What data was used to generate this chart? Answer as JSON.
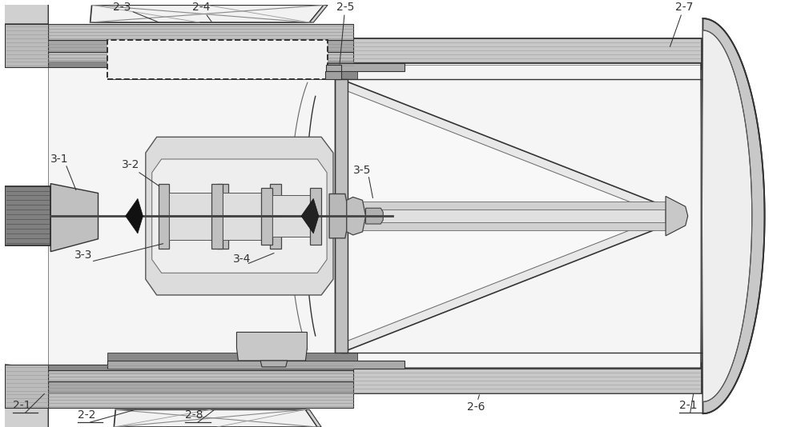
{
  "bg": "#ffffff",
  "dark": "#333333",
  "gray1": "#c8c8c8",
  "gray2": "#b0b0b0",
  "gray3": "#e0e0e0",
  "gray4": "#909090",
  "gray5": "#d8d8d8",
  "white": "#f8f8f8",
  "black": "#1a1a1a",
  "font_size": 10,
  "ann_lw": 0.75
}
